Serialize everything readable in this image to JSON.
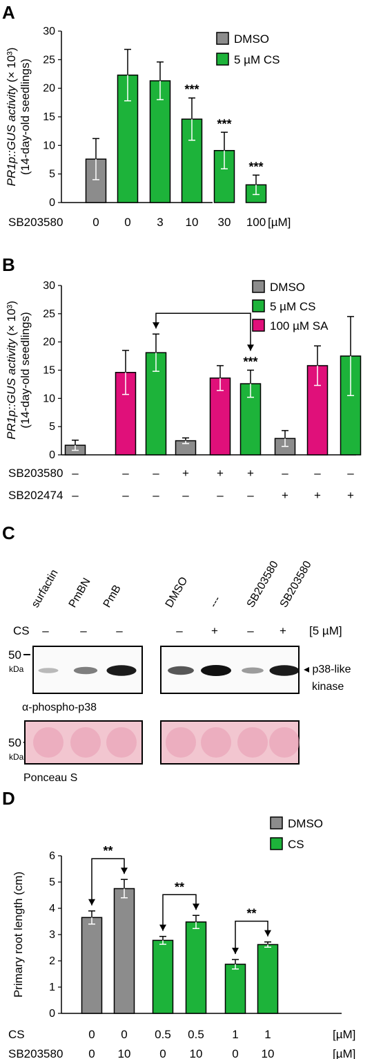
{
  "colors": {
    "dmso": "#8c8c8c",
    "cs": "#1db33a",
    "sa": "#e0107a",
    "ponceau": "#f2c6d0",
    "axis": "#000000"
  },
  "panels": {
    "a": "A",
    "b": "B",
    "c": "C",
    "d": "D"
  },
  "chart_data": [
    {
      "id": "A",
      "type": "bar",
      "ylabel_line1_italic": "PR1p::GUS activity",
      "ylabel_line1_rest": " (× 10³)",
      "ylabel_line2": "(14-day-old seedlings)",
      "ylim": [
        0,
        30
      ],
      "yticks": [
        "0",
        "5",
        "10",
        "15",
        "20",
        "25",
        "30"
      ],
      "legend": [
        {
          "label": "DMSO",
          "key": "dmso"
        },
        {
          "label": "5 µM CS",
          "key": "cs"
        }
      ],
      "row_labels": [
        {
          "name": "SB203580",
          "values": [
            "0",
            "0",
            "3",
            "10",
            "30",
            "100"
          ],
          "unit": "[µM]"
        }
      ],
      "bars": [
        {
          "value": 7.6,
          "error": 3.6,
          "group": "dmso",
          "sig": ""
        },
        {
          "value": 22.3,
          "error": 4.5,
          "group": "cs",
          "sig": ""
        },
        {
          "value": 21.3,
          "error": 3.3,
          "group": "cs",
          "sig": ""
        },
        {
          "value": 14.6,
          "error": 3.7,
          "group": "cs",
          "sig": "***"
        },
        {
          "value": 9.1,
          "error": 3.2,
          "group": "cs",
          "sig": "***"
        },
        {
          "value": 3.1,
          "error": 1.7,
          "group": "cs",
          "sig": "***"
        }
      ]
    },
    {
      "id": "B",
      "type": "bar",
      "ylabel_line1_italic": "PR1p::GUS activity",
      "ylabel_line1_rest": " (× 10³)",
      "ylabel_line2": "(14-day-old seedlings)",
      "ylim": [
        0,
        30
      ],
      "yticks": [
        "0",
        "5",
        "10",
        "15",
        "20",
        "25",
        "30"
      ],
      "legend": [
        {
          "label": "DMSO",
          "key": "dmso"
        },
        {
          "label": "5 µM CS",
          "key": "cs"
        },
        {
          "label": "100 µM SA",
          "key": "sa"
        }
      ],
      "row_labels": [
        {
          "name": "SB203580",
          "values": [
            "–",
            "–",
            "–",
            "+",
            "+",
            "+",
            "–",
            "–",
            "–"
          ],
          "unit": ""
        },
        {
          "name": "SB202474",
          "values": [
            "–",
            "–",
            "–",
            "–",
            "–",
            "–",
            "+",
            "+",
            "+"
          ],
          "unit": ""
        }
      ],
      "bars": [
        {
          "value": 1.7,
          "error": 0.9,
          "group": "dmso",
          "sig": ""
        },
        {
          "value": 14.6,
          "error": 3.9,
          "group": "sa",
          "sig": ""
        },
        {
          "value": 18.1,
          "error": 3.3,
          "group": "cs",
          "sig": ""
        },
        {
          "value": 2.5,
          "error": 0.5,
          "group": "dmso",
          "sig": ""
        },
        {
          "value": 13.6,
          "error": 2.2,
          "group": "sa",
          "sig": ""
        },
        {
          "value": 12.6,
          "error": 2.4,
          "group": "cs",
          "sig": "***"
        },
        {
          "value": 2.9,
          "error": 1.4,
          "group": "dmso",
          "sig": ""
        },
        {
          "value": 15.8,
          "error": 3.5,
          "group": "sa",
          "sig": ""
        },
        {
          "value": 17.5,
          "error": 7.0,
          "group": "cs",
          "sig": ""
        }
      ],
      "brackets": [
        {
          "from": 2,
          "to": 5,
          "label": ""
        }
      ]
    },
    {
      "id": "D",
      "type": "bar",
      "ylabel": "Primary root length (cm)",
      "ylim": [
        0,
        6
      ],
      "yticks": [
        "0",
        "1",
        "2",
        "3",
        "4",
        "5",
        "6"
      ],
      "legend": [
        {
          "label": "DMSO",
          "key": "dmso"
        },
        {
          "label": "CS",
          "key": "cs"
        }
      ],
      "row_labels": [
        {
          "name": "CS",
          "values": [
            "0",
            "0",
            "0.5",
            "0.5",
            "1",
            "1"
          ],
          "unit": "[µM]"
        },
        {
          "name": "SB203580",
          "values": [
            "0",
            "10",
            "0",
            "10",
            "0",
            "10"
          ],
          "unit": "[µM]"
        }
      ],
      "bars": [
        {
          "value": 3.65,
          "error": 0.25,
          "group": "dmso",
          "sig": ""
        },
        {
          "value": 4.75,
          "error": 0.35,
          "group": "dmso",
          "sig": ""
        },
        {
          "value": 2.78,
          "error": 0.15,
          "group": "cs",
          "sig": ""
        },
        {
          "value": 3.48,
          "error": 0.25,
          "group": "cs",
          "sig": ""
        },
        {
          "value": 1.87,
          "error": 0.18,
          "group": "cs",
          "sig": ""
        },
        {
          "value": 2.62,
          "error": 0.1,
          "group": "cs",
          "sig": ""
        }
      ],
      "brackets": [
        {
          "from": 0,
          "to": 1,
          "label": "**"
        },
        {
          "from": 2,
          "to": 3,
          "label": "**"
        },
        {
          "from": 4,
          "to": 5,
          "label": "**"
        }
      ]
    }
  ],
  "blot": {
    "lanes_left": [
      "surfactin",
      "PmBN",
      "PmB"
    ],
    "lanes_right": [
      "DMSO",
      "---",
      "SB203580",
      "SB203580"
    ],
    "cs_label": "CS",
    "cs_left": [
      "–",
      "–",
      "–"
    ],
    "cs_right": [
      "–",
      "+",
      "–",
      "+"
    ],
    "cs_unit": "[5 µM]",
    "marker_value": "50",
    "marker_unit": "kDa",
    "antibody_label": "α-phospho-p38",
    "band_label_line1": "◂ p38-like",
    "band_label_line2": "kinase",
    "loading_label": "Ponceau S",
    "band_intensity_left": [
      0.15,
      0.45,
      0.95
    ],
    "band_intensity_right": [
      0.65,
      1.0,
      0.3,
      0.95
    ]
  }
}
